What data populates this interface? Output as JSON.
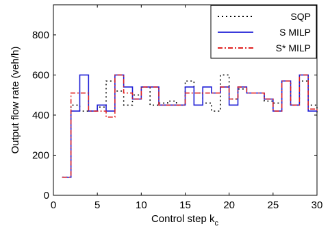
{
  "chart_data": {
    "type": "line",
    "step": true,
    "xlabel_main": "Control step k",
    "xlabel_sub": "c",
    "ylabel": "Output flow rate (veh/h)",
    "xlim": [
      0,
      30
    ],
    "ylim": [
      0,
      950
    ],
    "xticks": [
      0,
      5,
      10,
      15,
      20,
      25,
      30
    ],
    "yticks": [
      0,
      200,
      400,
      600,
      800
    ],
    "grid": false,
    "legend_position": "top-right",
    "series": [
      {
        "name": "SQP",
        "color": "#000000",
        "dash": "dotted",
        "x": [
          1,
          2,
          3,
          4,
          5,
          6,
          7,
          8,
          9,
          10,
          11,
          12,
          13,
          14,
          15,
          16,
          17,
          18,
          19,
          20,
          21,
          22,
          23,
          24,
          25,
          26,
          27,
          28,
          29,
          30
        ],
        "y": [
          90,
          450,
          420,
          420,
          440,
          570,
          520,
          450,
          500,
          540,
          450,
          460,
          470,
          450,
          570,
          510,
          460,
          420,
          600,
          480,
          530,
          510,
          510,
          470,
          460,
          570,
          450,
          570,
          450,
          410
        ]
      },
      {
        "name": "S MILP",
        "color": "#1f1fd6",
        "dash": "solid",
        "x": [
          1,
          2,
          3,
          4,
          5,
          6,
          7,
          8,
          9,
          10,
          11,
          12,
          13,
          14,
          15,
          16,
          17,
          18,
          19,
          20,
          21,
          22,
          23,
          24,
          25,
          26,
          27,
          28,
          29,
          30
        ],
        "y": [
          90,
          420,
          600,
          420,
          450,
          420,
          600,
          540,
          480,
          540,
          540,
          450,
          450,
          450,
          540,
          450,
          540,
          510,
          540,
          450,
          540,
          510,
          510,
          480,
          420,
          570,
          450,
          600,
          420,
          420
        ]
      },
      {
        "name": "S* MILP",
        "color": "#e01f1f",
        "dash": "dashdot",
        "x": [
          1,
          2,
          3,
          4,
          5,
          6,
          7,
          8,
          9,
          10,
          11,
          12,
          13,
          14,
          15,
          16,
          17,
          18,
          19,
          20,
          21,
          22,
          23,
          24,
          25,
          26,
          27,
          28,
          29,
          30
        ],
        "y": [
          90,
          510,
          510,
          420,
          420,
          390,
          600,
          510,
          480,
          540,
          540,
          450,
          450,
          450,
          510,
          510,
          510,
          510,
          540,
          480,
          540,
          510,
          510,
          480,
          420,
          570,
          450,
          600,
          430,
          420
        ]
      }
    ]
  }
}
